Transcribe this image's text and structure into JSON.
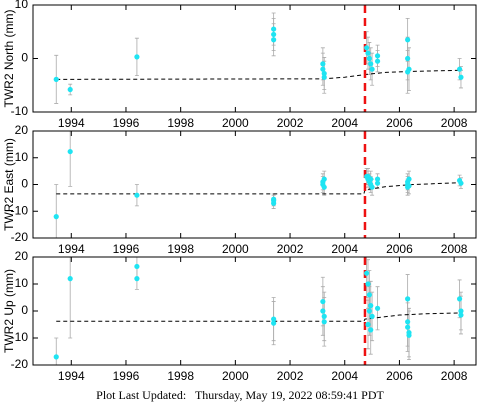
{
  "chart_data": [
    {
      "type": "scatter",
      "y_label": "TWR2 North (mm)",
      "xlim": [
        1992.6,
        2008.8
      ],
      "xticks": [
        1994,
        1996,
        1998,
        2000,
        2002,
        2004,
        2006,
        2008
      ],
      "ylim": [
        -10,
        10
      ],
      "yticks": [
        -10,
        0,
        10
      ],
      "color": "#1ee4f2",
      "error_color": "#aaaaaa",
      "x": [
        1993.45,
        1993.96,
        1996.4,
        2001.4,
        2001.4,
        2001.4,
        2003.2,
        2003.2,
        2003.25,
        2003.25,
        2004.8,
        2004.85,
        2004.9,
        2004.95,
        2005.0,
        2005.2,
        2005.2,
        2006.3,
        2006.3,
        2006.3,
        2006.35,
        2008.2,
        2008.25
      ],
      "values": [
        -3.9,
        -5.8,
        0.3,
        5.5,
        4.5,
        3.5,
        -1,
        -2,
        -2.8,
        -3.5,
        2,
        1,
        0,
        -1,
        -2,
        0.5,
        -0.5,
        3.5,
        0,
        -2.5,
        -2,
        -2,
        -3.5
      ],
      "errors": [
        4.5,
        1,
        3.5,
        3,
        3,
        3,
        3,
        3,
        3,
        3,
        3,
        3,
        3,
        3,
        3,
        2,
        2,
        4,
        4,
        4,
        4,
        2,
        2
      ],
      "model": {
        "x": [
          1993.45,
          2003.2,
          2004.0,
          2004.74,
          2005.5,
          2006.5,
          2008.3
        ],
        "values": [
          -3.9,
          -3.8,
          -3.5,
          -3.0,
          -2.6,
          -2.4,
          -2.2
        ],
        "color": "#000000"
      },
      "event_x": 2004.74,
      "event_color": "#ee1111"
    },
    {
      "type": "scatter",
      "y_label": "TWR2 East (mm)",
      "xlim": [
        1992.6,
        2008.8
      ],
      "xticks": [
        1994,
        1996,
        1998,
        2000,
        2002,
        2004,
        2006,
        2008
      ],
      "ylim": [
        -20,
        20
      ],
      "yticks": [
        -20,
        -10,
        0,
        10,
        20
      ],
      "color": "#1ee4f2",
      "error_color": "#aaaaaa",
      "x": [
        1993.45,
        1993.96,
        1996.4,
        2001.4,
        2001.4,
        2001.4,
        2003.2,
        2003.2,
        2003.25,
        2003.25,
        2004.8,
        2004.85,
        2004.9,
        2004.95,
        2005.0,
        2004.85,
        2004.95,
        2005.2,
        2005.2,
        2006.3,
        2006.3,
        2006.3,
        2006.35,
        2006.35,
        2008.2,
        2008.25
      ],
      "values": [
        -12,
        12.3,
        -4,
        -6,
        -7,
        -5.5,
        1,
        0,
        -1,
        2,
        3,
        2,
        1,
        0,
        -1,
        3,
        2,
        2,
        0.5,
        1,
        0,
        -1,
        -0.5,
        2,
        1.5,
        0.5
      ],
      "errors": [
        12,
        13,
        4,
        2,
        2,
        2,
        3,
        3,
        3,
        3,
        3,
        3,
        3,
        3,
        3,
        3,
        3,
        2,
        2,
        3,
        3,
        3,
        3,
        3,
        2,
        2
      ],
      "model": {
        "x": [
          1993.45,
          2004.7,
          2004.74,
          2005.5,
          2006.5,
          2008.3
        ],
        "values": [
          -3.5,
          -3.5,
          -2,
          -0.8,
          0,
          0.7
        ],
        "color": "#000000"
      },
      "event_x": 2004.74,
      "event_color": "#ee1111"
    },
    {
      "type": "scatter",
      "y_label": "TWR2 Up (mm)",
      "xlim": [
        1992.6,
        2008.8
      ],
      "xticks": [
        1994,
        1996,
        1998,
        2000,
        2002,
        2004,
        2006,
        2008
      ],
      "ylim": [
        -20,
        20
      ],
      "yticks": [
        -20,
        -10,
        0,
        10,
        20
      ],
      "color": "#1ee4f2",
      "error_color": "#aaaaaa",
      "x": [
        1993.45,
        1993.96,
        1996.4,
        1996.4,
        2001.4,
        2001.4,
        2003.2,
        2003.2,
        2003.25,
        2003.25,
        2004.8,
        2004.85,
        2004.9,
        2004.95,
        2005.0,
        2004.85,
        2004.95,
        2004.9,
        2005.2,
        2006.3,
        2006.3,
        2006.3,
        2006.35,
        2006.35,
        2008.2,
        2008.25,
        2008.25
      ],
      "values": [
        -17,
        12,
        16.5,
        12,
        -3,
        -4.5,
        3.5,
        0,
        -2,
        -4,
        14,
        10,
        6,
        2,
        -2,
        -5,
        -7,
        0,
        1,
        4.5,
        -4,
        -6,
        -8,
        -9,
        4.5,
        0,
        -1.5
      ],
      "errors": [
        7,
        22,
        4,
        4,
        8,
        8,
        9,
        9,
        9,
        9,
        9,
        9,
        9,
        9,
        9,
        9,
        9,
        9,
        8,
        9,
        9,
        9,
        9,
        9,
        7,
        7,
        7
      ],
      "model": {
        "x": [
          1993.45,
          2004.7,
          2004.74,
          2006.0,
          2007.0,
          2008.3
        ],
        "values": [
          -3.8,
          -3.8,
          -3,
          -1.5,
          -1,
          -0.7
        ],
        "color": "#000000"
      },
      "event_x": 2004.74,
      "event_color": "#ee1111"
    }
  ],
  "footer": "Plot Last Updated:   Thursday, May 19, 2022 08:59:41 PDT"
}
